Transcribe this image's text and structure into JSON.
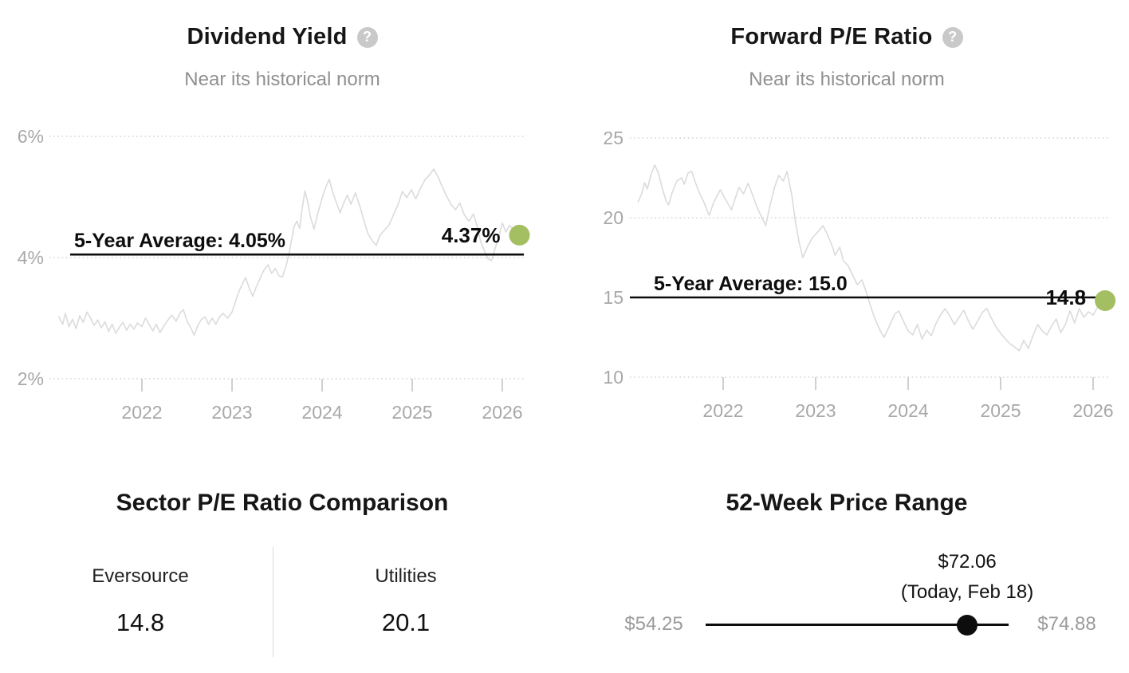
{
  "icons": {
    "help_glyph": "?"
  },
  "chart_data": [
    {
      "type": "line",
      "title": "Dividend Yield",
      "subtitle": "Near its historical norm",
      "x_ticks": [
        2022,
        2023,
        2024,
        2025,
        2026
      ],
      "ylim": [
        2,
        6
      ],
      "y_ticks": [
        {
          "value": 6,
          "label": "6%"
        },
        {
          "value": 4,
          "label": "4%"
        },
        {
          "value": 2,
          "label": "2%"
        }
      ],
      "grid": "dotted-horizontal",
      "legend": "none",
      "average": {
        "value": 4.05,
        "label": "5-Year Average: 4.05%"
      },
      "current": {
        "value": 4.37,
        "label": "4.37%",
        "date_year": 2026.19
      },
      "line_color": "#dbdbdb",
      "marker_color": "#a4bf61",
      "series": [
        {
          "name": "Dividend Yield %",
          "points": [
            [
              2021.08,
              3.02
            ],
            [
              2021.12,
              2.9
            ],
            [
              2021.15,
              3.08
            ],
            [
              2021.19,
              2.86
            ],
            [
              2021.23,
              2.98
            ],
            [
              2021.27,
              2.83
            ],
            [
              2021.31,
              3.04
            ],
            [
              2021.35,
              2.93
            ],
            [
              2021.39,
              3.1
            ],
            [
              2021.43,
              3.0
            ],
            [
              2021.47,
              2.88
            ],
            [
              2021.51,
              2.97
            ],
            [
              2021.55,
              2.84
            ],
            [
              2021.59,
              2.94
            ],
            [
              2021.63,
              2.78
            ],
            [
              2021.67,
              2.9
            ],
            [
              2021.71,
              2.75
            ],
            [
              2021.75,
              2.85
            ],
            [
              2021.79,
              2.93
            ],
            [
              2021.83,
              2.8
            ],
            [
              2021.87,
              2.9
            ],
            [
              2021.91,
              2.82
            ],
            [
              2021.95,
              2.92
            ],
            [
              2022.0,
              2.86
            ],
            [
              2022.04,
              3.0
            ],
            [
              2022.08,
              2.9
            ],
            [
              2022.12,
              2.79
            ],
            [
              2022.16,
              2.9
            ],
            [
              2022.2,
              2.76
            ],
            [
              2022.24,
              2.86
            ],
            [
              2022.28,
              2.95
            ],
            [
              2022.33,
              3.05
            ],
            [
              2022.38,
              2.95
            ],
            [
              2022.42,
              3.08
            ],
            [
              2022.46,
              3.14
            ],
            [
              2022.5,
              2.95
            ],
            [
              2022.54,
              2.85
            ],
            [
              2022.58,
              2.72
            ],
            [
              2022.62,
              2.88
            ],
            [
              2022.66,
              2.98
            ],
            [
              2022.7,
              3.02
            ],
            [
              2022.74,
              2.9
            ],
            [
              2022.78,
              3.0
            ],
            [
              2022.82,
              2.9
            ],
            [
              2022.86,
              3.02
            ],
            [
              2022.9,
              3.08
            ],
            [
              2022.95,
              3.0
            ],
            [
              2023.0,
              3.1
            ],
            [
              2023.04,
              3.28
            ],
            [
              2023.08,
              3.45
            ],
            [
              2023.12,
              3.58
            ],
            [
              2023.15,
              3.67
            ],
            [
              2023.19,
              3.5
            ],
            [
              2023.23,
              3.36
            ],
            [
              2023.27,
              3.52
            ],
            [
              2023.31,
              3.65
            ],
            [
              2023.35,
              3.78
            ],
            [
              2023.4,
              3.88
            ],
            [
              2023.44,
              3.74
            ],
            [
              2023.48,
              3.82
            ],
            [
              2023.52,
              3.7
            ],
            [
              2023.56,
              3.68
            ],
            [
              2023.6,
              3.86
            ],
            [
              2023.63,
              4.05
            ],
            [
              2023.66,
              4.28
            ],
            [
              2023.69,
              4.52
            ],
            [
              2023.72,
              4.6
            ],
            [
              2023.75,
              4.48
            ],
            [
              2023.78,
              4.82
            ],
            [
              2023.81,
              5.1
            ],
            [
              2023.84,
              4.92
            ],
            [
              2023.87,
              4.68
            ],
            [
              2023.91,
              4.47
            ],
            [
              2023.95,
              4.72
            ],
            [
              2024.0,
              4.98
            ],
            [
              2024.04,
              5.16
            ],
            [
              2024.08,
              5.29
            ],
            [
              2024.12,
              5.06
            ],
            [
              2024.16,
              4.9
            ],
            [
              2024.2,
              4.74
            ],
            [
              2024.24,
              4.9
            ],
            [
              2024.28,
              5.03
            ],
            [
              2024.32,
              4.88
            ],
            [
              2024.37,
              5.07
            ],
            [
              2024.42,
              4.84
            ],
            [
              2024.47,
              4.58
            ],
            [
              2024.51,
              4.39
            ],
            [
              2024.56,
              4.27
            ],
            [
              2024.6,
              4.2
            ],
            [
              2024.64,
              4.36
            ],
            [
              2024.69,
              4.45
            ],
            [
              2024.74,
              4.53
            ],
            [
              2024.79,
              4.7
            ],
            [
              2024.84,
              4.86
            ],
            [
              2024.89,
              5.09
            ],
            [
              2024.94,
              4.99
            ],
            [
              2024.99,
              5.12
            ],
            [
              2025.04,
              4.97
            ],
            [
              2025.09,
              5.14
            ],
            [
              2025.14,
              5.28
            ],
            [
              2025.19,
              5.36
            ],
            [
              2025.24,
              5.46
            ],
            [
              2025.29,
              5.32
            ],
            [
              2025.33,
              5.18
            ],
            [
              2025.38,
              5.02
            ],
            [
              2025.43,
              4.88
            ],
            [
              2025.48,
              4.79
            ],
            [
              2025.53,
              4.9
            ],
            [
              2025.58,
              4.7
            ],
            [
              2025.63,
              4.6
            ],
            [
              2025.68,
              4.72
            ],
            [
              2025.72,
              4.52
            ],
            [
              2025.76,
              4.26
            ],
            [
              2025.8,
              4.12
            ],
            [
              2025.84,
              3.98
            ],
            [
              2025.88,
              3.95
            ],
            [
              2025.92,
              4.15
            ],
            [
              2025.96,
              4.34
            ],
            [
              2026.0,
              4.57
            ],
            [
              2026.04,
              4.42
            ],
            [
              2026.08,
              4.53
            ],
            [
              2026.12,
              4.46
            ],
            [
              2026.16,
              4.41
            ],
            [
              2026.19,
              4.37
            ]
          ]
        }
      ]
    },
    {
      "type": "line",
      "title": "Forward P/E Ratio",
      "subtitle": "Near its historical norm",
      "x_ticks": [
        2022,
        2023,
        2024,
        2025,
        2026
      ],
      "ylim": [
        10,
        25
      ],
      "y_ticks": [
        {
          "value": 25,
          "label": "25"
        },
        {
          "value": 20,
          "label": "20"
        },
        {
          "value": 15,
          "label": "15"
        },
        {
          "value": 10,
          "label": "10"
        }
      ],
      "grid": "dotted-horizontal",
      "legend": "none",
      "average": {
        "value": 15.0,
        "label": "5-Year Average: 15.0"
      },
      "current": {
        "value": 14.8,
        "label": "14.8",
        "date_year": 2026.13
      },
      "line_color": "#dbdbdb",
      "marker_color": "#a4bf61",
      "series": [
        {
          "name": "Forward P/E",
          "points": [
            [
              2021.08,
              21.0
            ],
            [
              2021.12,
              21.5
            ],
            [
              2021.15,
              22.2
            ],
            [
              2021.18,
              21.8
            ],
            [
              2021.22,
              22.7
            ],
            [
              2021.26,
              23.3
            ],
            [
              2021.3,
              22.8
            ],
            [
              2021.34,
              21.9
            ],
            [
              2021.38,
              21.1
            ],
            [
              2021.41,
              20.8
            ],
            [
              2021.45,
              21.6
            ],
            [
              2021.5,
              22.3
            ],
            [
              2021.55,
              22.5
            ],
            [
              2021.58,
              22.1
            ],
            [
              2021.62,
              22.8
            ],
            [
              2021.66,
              22.9
            ],
            [
              2021.7,
              22.2
            ],
            [
              2021.74,
              21.6
            ],
            [
              2021.79,
              21.0
            ],
            [
              2021.83,
              20.4
            ],
            [
              2021.85,
              20.15
            ],
            [
              2021.9,
              21.0
            ],
            [
              2021.97,
              21.75
            ],
            [
              2022.02,
              21.2
            ],
            [
              2022.09,
              20.5
            ],
            [
              2022.13,
              21.2
            ],
            [
              2022.17,
              21.9
            ],
            [
              2022.22,
              21.5
            ],
            [
              2022.27,
              22.15
            ],
            [
              2022.32,
              21.4
            ],
            [
              2022.37,
              20.6
            ],
            [
              2022.42,
              20.0
            ],
            [
              2022.46,
              19.5
            ],
            [
              2022.5,
              20.6
            ],
            [
              2022.55,
              21.8
            ],
            [
              2022.6,
              22.65
            ],
            [
              2022.65,
              22.3
            ],
            [
              2022.69,
              22.9
            ],
            [
              2022.74,
              21.5
            ],
            [
              2022.78,
              19.8
            ],
            [
              2022.82,
              18.5
            ],
            [
              2022.86,
              17.5
            ],
            [
              2022.91,
              18.15
            ],
            [
              2022.96,
              18.7
            ],
            [
              2023.03,
              19.15
            ],
            [
              2023.08,
              19.5
            ],
            [
              2023.13,
              18.9
            ],
            [
              2023.18,
              18.2
            ],
            [
              2023.21,
              17.65
            ],
            [
              2023.26,
              18.15
            ],
            [
              2023.3,
              17.3
            ],
            [
              2023.35,
              17.0
            ],
            [
              2023.4,
              16.4
            ],
            [
              2023.45,
              15.8
            ],
            [
              2023.5,
              16.1
            ],
            [
              2023.55,
              15.3
            ],
            [
              2023.58,
              14.7
            ],
            [
              2023.62,
              14.0
            ],
            [
              2023.66,
              13.4
            ],
            [
              2023.7,
              12.9
            ],
            [
              2023.74,
              12.5
            ],
            [
              2023.78,
              13.0
            ],
            [
              2023.82,
              13.5
            ],
            [
              2023.86,
              14.0
            ],
            [
              2023.9,
              14.15
            ],
            [
              2023.95,
              13.5
            ],
            [
              2024.0,
              12.9
            ],
            [
              2024.05,
              12.65
            ],
            [
              2024.1,
              13.3
            ],
            [
              2024.15,
              12.4
            ],
            [
              2024.2,
              12.95
            ],
            [
              2024.25,
              12.6
            ],
            [
              2024.3,
              13.35
            ],
            [
              2024.35,
              13.9
            ],
            [
              2024.4,
              14.3
            ],
            [
              2024.45,
              13.85
            ],
            [
              2024.5,
              13.3
            ],
            [
              2024.55,
              13.75
            ],
            [
              2024.6,
              14.2
            ],
            [
              2024.65,
              13.55
            ],
            [
              2024.7,
              13.0
            ],
            [
              2024.75,
              13.5
            ],
            [
              2024.8,
              14.05
            ],
            [
              2024.85,
              14.3
            ],
            [
              2024.9,
              13.7
            ],
            [
              2024.95,
              13.15
            ],
            [
              2025.0,
              12.75
            ],
            [
              2025.05,
              12.4
            ],
            [
              2025.1,
              12.1
            ],
            [
              2025.15,
              11.9
            ],
            [
              2025.2,
              11.65
            ],
            [
              2025.25,
              12.3
            ],
            [
              2025.3,
              11.8
            ],
            [
              2025.35,
              12.6
            ],
            [
              2025.4,
              13.3
            ],
            [
              2025.45,
              12.9
            ],
            [
              2025.5,
              12.65
            ],
            [
              2025.55,
              13.2
            ],
            [
              2025.6,
              13.65
            ],
            [
              2025.65,
              12.8
            ],
            [
              2025.7,
              13.3
            ],
            [
              2025.75,
              14.15
            ],
            [
              2025.8,
              13.4
            ],
            [
              2025.85,
              14.3
            ],
            [
              2025.9,
              13.75
            ],
            [
              2025.95,
              14.1
            ],
            [
              2026.0,
              13.9
            ],
            [
              2026.05,
              14.4
            ],
            [
              2026.13,
              14.75
            ]
          ]
        }
      ]
    },
    {
      "type": "table",
      "title": "Sector P/E Ratio Comparison",
      "entries": [
        {
          "label": "Eversource",
          "value": "14.8"
        },
        {
          "label": "Utilities",
          "value": "20.1"
        }
      ]
    },
    {
      "type": "range",
      "title": "52-Week Price Range",
      "low": {
        "label": "$54.25",
        "value": 54.25
      },
      "high": {
        "label": "$74.88",
        "value": 74.88
      },
      "current": {
        "label": "$72.06",
        "sublabel": "(Today, Feb 18)",
        "value": 72.06
      }
    }
  ]
}
